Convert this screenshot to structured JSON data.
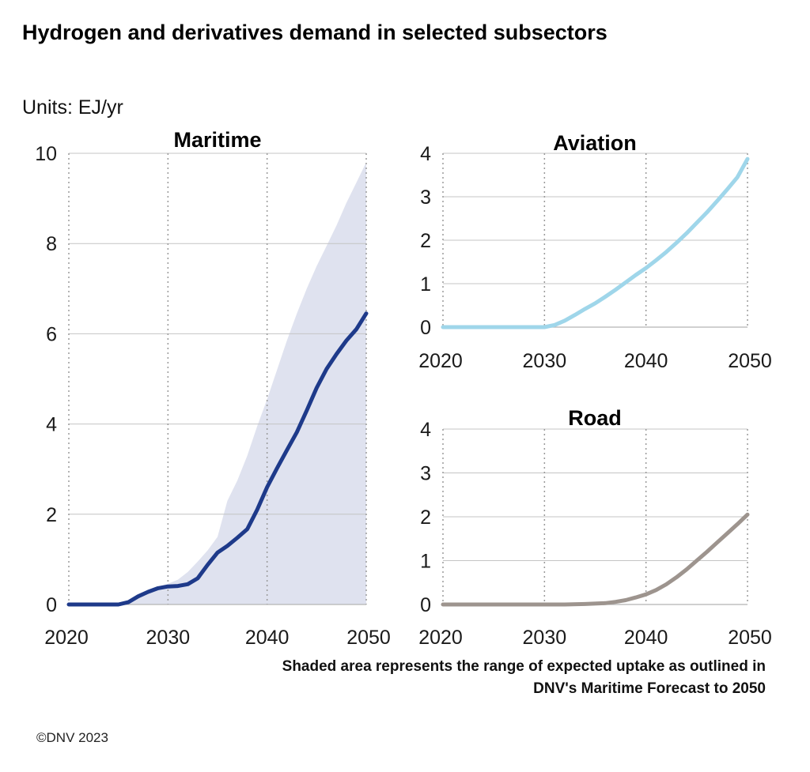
{
  "title": "Hydrogen and derivatives demand in selected subsectors",
  "units": "Units: EJ/yr",
  "footnote": "Shaded area represents the range of expected uptake as outlined in DNV's Maritime Forecast to 2050",
  "copyright": "©DNV 2023",
  "chart_data": [
    {
      "type": "line",
      "title": "Maritime",
      "x_ticks": [
        "2020",
        "2030",
        "2040",
        "2050"
      ],
      "y_ticks": [
        "0",
        "2",
        "4",
        "6",
        "8",
        "10"
      ],
      "xlim": [
        2020,
        2050
      ],
      "ylim": [
        0,
        10
      ],
      "grid": "vertical dotted at 2030, 2040, 2050; horizontal solid at y ticks",
      "series": [
        {
          "color": "#1e3a8a",
          "x": [
            2020,
            2025,
            2026,
            2027,
            2028,
            2029,
            2030,
            2031,
            2032,
            2033,
            2034,
            2035,
            2036,
            2037,
            2038,
            2039,
            2040,
            2041,
            2042,
            2043,
            2044,
            2045,
            2046,
            2047,
            2048,
            2049,
            2050
          ],
          "y": [
            0,
            0,
            0.05,
            0.18,
            0.28,
            0.36,
            0.4,
            0.41,
            0.45,
            0.58,
            0.88,
            1.15,
            1.3,
            1.48,
            1.67,
            2.1,
            2.6,
            3.02,
            3.42,
            3.82,
            4.3,
            4.8,
            5.22,
            5.55,
            5.85,
            6.1,
            6.45
          ]
        }
      ],
      "range_band": {
        "color": "#dfe2ef",
        "x": [
          2020,
          2025,
          2026,
          2027,
          2028,
          2029,
          2030,
          2031,
          2032,
          2033,
          2034,
          2035,
          2036,
          2037,
          2038,
          2039,
          2040,
          2041,
          2042,
          2043,
          2044,
          2045,
          2046,
          2047,
          2048,
          2049,
          2050
        ],
        "upper": [
          0,
          0,
          0.08,
          0.22,
          0.32,
          0.4,
          0.46,
          0.55,
          0.72,
          0.95,
          1.2,
          1.5,
          2.3,
          2.75,
          3.3,
          3.95,
          4.55,
          5.2,
          5.85,
          6.45,
          7.0,
          7.5,
          7.95,
          8.4,
          8.9,
          9.35,
          9.8
        ],
        "lower": [
          0,
          0,
          0,
          0,
          0,
          0,
          0,
          0,
          0,
          0,
          0,
          0,
          0,
          0,
          0,
          0,
          0,
          0,
          0,
          0,
          0,
          0,
          0,
          0,
          0,
          0,
          0
        ]
      }
    },
    {
      "type": "line",
      "title": "Aviation",
      "x_ticks": [
        "2020",
        "2030",
        "2040",
        "2050"
      ],
      "y_ticks": [
        "0",
        "1",
        "2",
        "3",
        "4"
      ],
      "xlim": [
        2020,
        2050
      ],
      "ylim": [
        0,
        4
      ],
      "grid": "vertical dotted at 2030, 2040, 2050; horizontal solid at y ticks",
      "series": [
        {
          "color": "#9fd6ea",
          "x": [
            2020,
            2030,
            2031,
            2032,
            2033,
            2034,
            2035,
            2036,
            2037,
            2038,
            2039,
            2040,
            2041,
            2042,
            2043,
            2044,
            2045,
            2046,
            2047,
            2048,
            2049,
            2050
          ],
          "y": [
            0,
            0,
            0.05,
            0.15,
            0.28,
            0.42,
            0.55,
            0.7,
            0.86,
            1.03,
            1.2,
            1.36,
            1.54,
            1.73,
            1.94,
            2.16,
            2.4,
            2.64,
            2.9,
            3.17,
            3.45,
            3.87
          ]
        }
      ]
    },
    {
      "type": "line",
      "title": "Road",
      "x_ticks": [
        "2020",
        "2030",
        "2040",
        "2050"
      ],
      "y_ticks": [
        "0",
        "1",
        "2",
        "3",
        "4"
      ],
      "xlim": [
        2020,
        2050
      ],
      "ylim": [
        0,
        4
      ],
      "grid": "vertical dotted at 2030, 2040, 2050; horizontal solid at y ticks",
      "series": [
        {
          "color": "#9d948e",
          "x": [
            2020,
            2032,
            2034,
            2036,
            2037,
            2038,
            2039,
            2040,
            2041,
            2042,
            2043,
            2044,
            2045,
            2046,
            2047,
            2048,
            2049,
            2050
          ],
          "y": [
            0,
            0,
            0.01,
            0.03,
            0.06,
            0.1,
            0.16,
            0.23,
            0.33,
            0.46,
            0.62,
            0.8,
            1.0,
            1.2,
            1.41,
            1.62,
            1.83,
            2.05
          ]
        }
      ]
    }
  ]
}
